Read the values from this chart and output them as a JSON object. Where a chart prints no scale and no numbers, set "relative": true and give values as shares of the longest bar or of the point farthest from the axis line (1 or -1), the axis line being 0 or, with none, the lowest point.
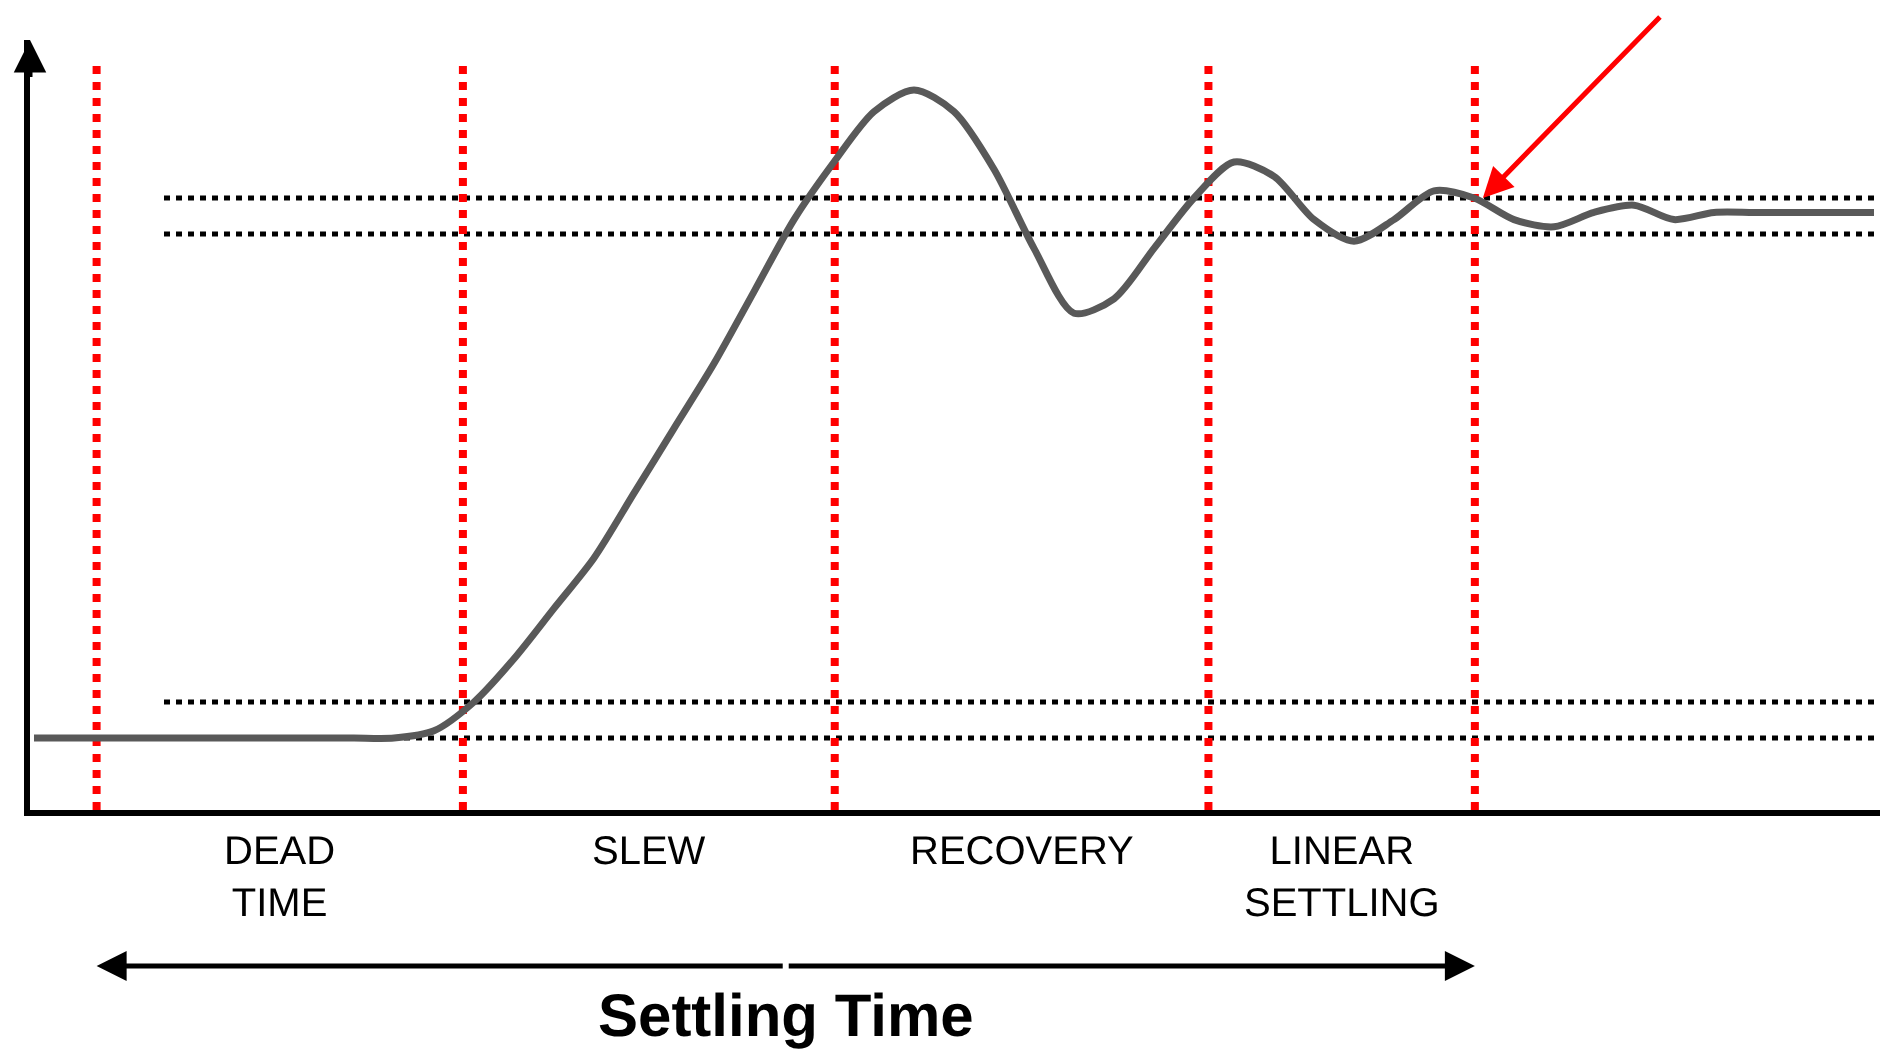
{
  "chart_data": {
    "type": "line",
    "relative": true,
    "legend": false,
    "grid": false,
    "marker": "none",
    "line_style": "solid",
    "xlabel": "Settling Time",
    "categories": [
      null,
      null,
      null,
      null,
      null,
      null,
      null,
      null,
      null,
      null,
      null,
      null,
      null,
      null,
      null,
      null,
      null,
      null,
      null,
      null,
      null,
      null,
      null,
      null,
      null,
      null,
      null,
      null,
      null,
      null,
      null,
      null,
      null,
      null,
      null,
      null,
      null,
      null,
      null,
      null,
      null,
      null,
      null,
      null,
      null,
      null,
      null
    ],
    "series": [
      {
        "color": "#595959",
        "values": [
          0.1,
          0.1,
          0.1,
          0.1,
          0.1,
          0.1,
          0.1,
          0.1,
          0.1,
          0.1,
          0.11,
          0.15,
          0.21,
          0.28,
          0.35,
          0.44,
          0.53,
          0.62,
          0.72,
          0.82,
          0.9,
          0.97,
          1.0,
          0.97,
          0.89,
          0.78,
          0.69,
          0.71,
          0.78,
          0.85,
          0.9,
          0.88,
          0.82,
          0.79,
          0.82,
          0.86,
          0.85,
          0.82,
          0.81,
          0.83,
          0.84,
          0.82,
          0.83,
          0.83,
          0.83,
          0.83,
          0.83
        ]
      }
    ],
    "ref_lines": [
      {
        "axis": "y",
        "value": 0.85,
        "color": "#000000",
        "line_style": "dotted"
      },
      {
        "axis": "y",
        "value": 0.8,
        "color": "#000000",
        "line_style": "dotted"
      },
      {
        "axis": "y",
        "value": 0.15,
        "color": "#000000",
        "line_style": "dotted"
      },
      {
        "axis": "y",
        "value": 0.1,
        "color": "#000000",
        "line_style": "dotted"
      }
    ],
    "annotations": [
      "DEAD\nTIME",
      "SLEW",
      "RECOVERY",
      "LINEAR\nSETTLING"
    ]
  }
}
